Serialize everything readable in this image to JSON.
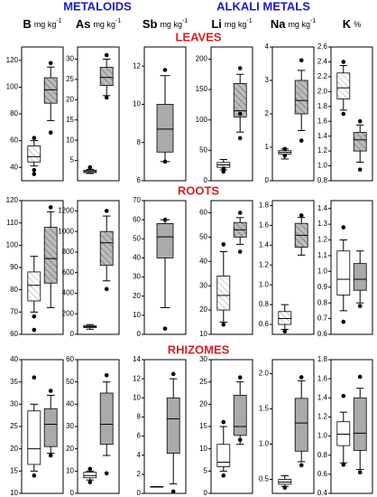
{
  "headers": [
    "METALOIDS",
    "ALKALI METALS"
  ],
  "rows": [
    "LEAVES",
    "ROOTS",
    "RHIZOMES"
  ],
  "columns": [
    {
      "name": "B",
      "unit": "mg kg",
      "exp": "-1"
    },
    {
      "name": "As",
      "unit": "mg kg",
      "exp": "-1"
    },
    {
      "name": "Sb",
      "unit": "mg kg",
      "exp": "-1"
    },
    {
      "name": "Li",
      "unit": "mg kg",
      "exp": "-1"
    },
    {
      "name": "Na",
      "unit": "mg kg",
      "exp": "-1"
    },
    {
      "name": "K",
      "unit": "%"
    }
  ],
  "chart_data": [
    {
      "type": "box",
      "ylim": [
        30,
        130
      ],
      "yticks": [
        40,
        60,
        80,
        100,
        120
      ],
      "series": [
        {
          "style": "light-hatch",
          "min": 41,
          "q1": 44,
          "median": 48,
          "q3": 56,
          "max": 60,
          "outliers": [
            35,
            38,
            62
          ]
        },
        {
          "style": "dark-hatch",
          "min": 75,
          "q1": 88,
          "median": 98,
          "q3": 107,
          "max": 115,
          "outliers": [
            66,
            118
          ]
        }
      ]
    },
    {
      "type": "box",
      "ylim": [
        0,
        33
      ],
      "yticks": [
        5,
        10,
        15,
        20,
        25,
        30
      ],
      "series": [
        {
          "style": "light-hatch",
          "min": 1.8,
          "q1": 2,
          "median": 2.3,
          "q3": 2.6,
          "max": 2.8,
          "outliers": [
            3.3
          ]
        },
        {
          "style": "dark-hatch",
          "min": 21,
          "q1": 23.5,
          "median": 25.5,
          "q3": 28,
          "max": 30,
          "outliers": [
            20.5,
            31
          ]
        }
      ]
    },
    {
      "type": "box",
      "ylim": [
        6,
        13
      ],
      "yticks": [
        6,
        8,
        10,
        12
      ],
      "series": [
        {
          "style": "gray",
          "min": 7,
          "q1": 7.5,
          "median": 8.7,
          "q3": 10,
          "max": 11.5,
          "outliers": [
            7,
            11.8
          ]
        }
      ]
    },
    {
      "type": "box",
      "ylim": [
        0,
        220
      ],
      "yticks": [
        0,
        50,
        100,
        150,
        200
      ],
      "series": [
        {
          "style": "light-hatch",
          "min": 18,
          "q1": 22,
          "median": 26,
          "q3": 30,
          "max": 35,
          "outliers": [
            15,
            20
          ]
        },
        {
          "style": "dark-hatch",
          "min": 80,
          "q1": 105,
          "median": 115,
          "q3": 160,
          "max": 175,
          "outliers": [
            70,
            110,
            185
          ]
        }
      ]
    },
    {
      "type": "box",
      "ylim": [
        0,
        4
      ],
      "yticks": [
        0,
        1,
        2,
        3,
        4
      ],
      "series": [
        {
          "style": "light-hatch",
          "min": 0.65,
          "q1": 0.8,
          "median": 0.85,
          "q3": 0.9,
          "max": 0.95,
          "outliers": [
            0.75,
            0.95
          ]
        },
        {
          "style": "dark-hatch",
          "min": 1.5,
          "q1": 2,
          "median": 2.4,
          "q3": 3,
          "max": 3.3,
          "outliers": [
            1.2,
            3.6
          ]
        }
      ]
    },
    {
      "type": "box",
      "ylim": [
        0.8,
        2.6
      ],
      "yticks": [
        0.8,
        {
          "value": 1,
          "label": "1.0"
        },
        1.2,
        1.4,
        1.6,
        1.8,
        {
          "value": 2,
          "label": "2.0"
        },
        2.2,
        2.4,
        2.6
      ],
      "series": [
        {
          "style": "light-hatch",
          "min": 1.75,
          "q1": 1.9,
          "median": 2.05,
          "q3": 2.25,
          "max": 2.35,
          "outliers": [
            1.7,
            2.4
          ]
        },
        {
          "style": "dark-hatch",
          "min": 1.05,
          "q1": 1.2,
          "median": 1.35,
          "q3": 1.45,
          "max": 1.55,
          "outliers": [
            0.95,
            1.6
          ]
        }
      ]
    },
    {
      "type": "box",
      "ylim": [
        60,
        120
      ],
      "yticks": [
        60,
        70,
        80,
        90,
        100,
        110,
        120
      ],
      "series": [
        {
          "style": "light-hatch",
          "min": 70,
          "q1": 75,
          "median": 82,
          "q3": 88,
          "max": 95,
          "outliers": [
            62,
            68
          ]
        },
        {
          "style": "dark-hatch",
          "min": 72,
          "q1": 83,
          "median": 94,
          "q3": 108,
          "max": 115,
          "outliers": [
            117
          ]
        }
      ]
    },
    {
      "type": "box",
      "ylim": [
        0,
        1300
      ],
      "yticks": [
        0,
        200,
        400,
        600,
        800,
        1000,
        1200
      ],
      "series": [
        {
          "style": "light-hatch",
          "min": 50,
          "q1": 65,
          "median": 75,
          "q3": 85,
          "max": 95,
          "outliers": []
        },
        {
          "style": "dark-hatch",
          "min": 520,
          "q1": 670,
          "median": 890,
          "q3": 1000,
          "max": 1150,
          "outliers": [
            440,
            1200
          ]
        }
      ]
    },
    {
      "type": "box",
      "ylim": [
        0,
        70
      ],
      "yticks": [
        0,
        10,
        20,
        30,
        40,
        50,
        60,
        70
      ],
      "series": [
        {
          "style": "gray",
          "min": 14,
          "q1": 40,
          "median": 51,
          "q3": 58,
          "max": 60,
          "outliers": [
            3,
            60
          ]
        }
      ]
    },
    {
      "type": "box",
      "ylim": [
        10,
        65
      ],
      "yticks": [
        10,
        20,
        30,
        40,
        50,
        60
      ],
      "series": [
        {
          "style": "light-hatch",
          "min": 15,
          "q1": 20,
          "median": 26,
          "q3": 34,
          "max": 44,
          "outliers": [
            14,
            47
          ]
        },
        {
          "style": "dark-hatch",
          "min": 47,
          "q1": 50,
          "median": 53,
          "q3": 56,
          "max": 58,
          "outliers": [
            44,
            60
          ]
        }
      ]
    },
    {
      "type": "box",
      "ylim": [
        0.5,
        1.85
      ],
      "yticks": [
        0.6,
        0.8,
        {
          "value": 1,
          "label": "1.0"
        },
        1.2,
        1.4,
        1.6,
        1.8
      ],
      "series": [
        {
          "style": "light-hatch",
          "min": 0.55,
          "q1": 0.6,
          "median": 0.66,
          "q3": 0.73,
          "max": 0.8,
          "outliers": [
            0.53
          ]
        },
        {
          "style": "dark-hatch",
          "min": 1.3,
          "q1": 1.38,
          "median": 1.5,
          "q3": 1.62,
          "max": 1.68,
          "outliers": [
            1.7
          ]
        }
      ]
    },
    {
      "type": "box",
      "ylim": [
        0.6,
        1.45
      ],
      "yticks": [
        0.6,
        0.7,
        0.8,
        0.9,
        {
          "value": 1,
          "label": "1.0"
        },
        1.1,
        1.2,
        1.3,
        1.4
      ],
      "series": [
        {
          "style": "white",
          "min": 0.75,
          "q1": 0.85,
          "median": 0.95,
          "q3": 1.13,
          "max": 1.2,
          "outliers": [
            0.68,
            1.28
          ]
        },
        {
          "style": "gray",
          "min": 0.8,
          "q1": 0.88,
          "median": 0.95,
          "q3": 1.05,
          "max": 1.13,
          "outliers": [
            0.78
          ]
        }
      ]
    },
    {
      "type": "box",
      "ylim": [
        10,
        40
      ],
      "yticks": [
        10,
        15,
        20,
        25,
        30,
        35,
        40
      ],
      "series": [
        {
          "style": "white",
          "min": 15,
          "q1": 16.5,
          "median": 20,
          "q3": 28.5,
          "max": 30,
          "outliers": [
            14,
            36
          ]
        },
        {
          "style": "gray",
          "min": 19,
          "q1": 20.5,
          "median": 25.5,
          "q3": 29,
          "max": 32,
          "outliers": [
            18.5,
            33
          ]
        }
      ]
    },
    {
      "type": "box",
      "ylim": [
        0,
        60
      ],
      "yticks": [
        0,
        10,
        20,
        30,
        40,
        50,
        60
      ],
      "series": [
        {
          "style": "white",
          "min": 6,
          "q1": 7,
          "median": 8,
          "q3": 9.5,
          "max": 10,
          "outliers": [
            5,
            11
          ]
        },
        {
          "style": "gray",
          "min": 17,
          "q1": 22,
          "median": 31,
          "q3": 45,
          "max": 50,
          "outliers": [
            9,
            53
          ]
        }
      ]
    },
    {
      "type": "box",
      "ylim": [
        0,
        14
      ],
      "yticks": [
        0,
        2,
        4,
        6,
        8,
        10,
        12,
        14
      ],
      "series": [
        {
          "style": "white",
          "min": 0.7,
          "q1": 0.7,
          "median": 0.7,
          "q3": 0.7,
          "max": 0.7,
          "outliers": []
        },
        {
          "style": "gray",
          "min": 1,
          "q1": 4.2,
          "median": 7.8,
          "q3": 10,
          "max": 12,
          "outliers": [
            0.2,
            12.5
          ]
        }
      ]
    },
    {
      "type": "box",
      "ylim": [
        0,
        30
      ],
      "yticks": [
        0,
        5,
        10,
        15,
        20,
        25,
        30
      ],
      "series": [
        {
          "style": "white",
          "min": 5,
          "q1": 6,
          "median": 7,
          "q3": 11,
          "max": 15,
          "outliers": [
            4,
            16
          ]
        },
        {
          "style": "gray",
          "min": 11,
          "q1": 13,
          "median": 15,
          "q3": 22,
          "max": 25,
          "outliers": [
            12,
            26
          ]
        }
      ]
    },
    {
      "type": "box",
      "ylim": [
        0.3,
        2.2
      ],
      "yticks": [
        0.5,
        {
          "value": 1,
          "label": "1.0"
        },
        1.5,
        {
          "value": 2,
          "label": "2.0"
        }
      ],
      "series": [
        {
          "style": "white",
          "min": 0.4,
          "q1": 0.43,
          "median": 0.46,
          "q3": 0.5,
          "max": 0.55,
          "outliers": [
            0.38
          ]
        },
        {
          "style": "gray",
          "min": 0.75,
          "q1": 0.9,
          "median": 1.3,
          "q3": 1.65,
          "max": 1.9,
          "outliers": [
            0.7,
            1.95
          ]
        }
      ]
    },
    {
      "type": "box",
      "ylim": [
        0.4,
        1.8
      ],
      "yticks": [
        0.4,
        0.6,
        0.8,
        {
          "value": 1,
          "label": "1.0"
        },
        1.2,
        1.4,
        1.6,
        1.8
      ],
      "series": [
        {
          "style": "white",
          "min": 0.72,
          "q1": 0.9,
          "median": 1.02,
          "q3": 1.15,
          "max": 1.25,
          "outliers": [
            0.7,
            1.42
          ]
        },
        {
          "style": "gray",
          "min": 0.65,
          "q1": 0.85,
          "median": 1.03,
          "q3": 1.4,
          "max": 1.5,
          "outliers": [
            0.62,
            1.62
          ]
        }
      ]
    }
  ]
}
